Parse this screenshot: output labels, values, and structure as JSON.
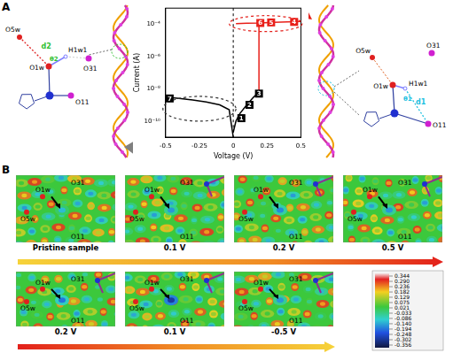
{
  "panel_labels": [
    "A",
    "B"
  ],
  "schematic_left": {
    "atoms": [
      "O5w",
      "O1w",
      "H1w1",
      "O31",
      "O11"
    ],
    "distance": "d2",
    "angle": "θ2"
  },
  "schematic_right": {
    "atoms": [
      "O5w",
      "O31",
      "O1w",
      "H1w1",
      "O11"
    ],
    "distance": "d1",
    "angle": "θ1"
  },
  "chart_data": {
    "type": "line",
    "x_label": "Voltage (V)",
    "y_label": "Current (A)",
    "log": "y",
    "grid": false,
    "xlim": [
      -0.5,
      0.5
    ],
    "xticks": [
      -0.5,
      -0.25,
      0,
      0.25,
      0.5
    ],
    "ylim": [
      1e-11,
      0.001
    ],
    "yticks": [
      {
        "value": 1e-10,
        "label": "10⁻¹⁰"
      },
      {
        "value": 1e-08,
        "label": "10⁻⁸"
      },
      {
        "value": 1e-06,
        "label": "10⁻⁶"
      },
      {
        "value": 0.0001,
        "label": "10⁻⁴"
      }
    ],
    "series": [
      {
        "color": "#000000",
        "x": [
          0,
          0.02,
          0.05,
          0.1,
          0.15,
          0.19
        ],
        "values": [
          2e-11,
          1e-10,
          3e-10,
          1e-09,
          3e-09,
          6e-09
        ]
      },
      {
        "color": "#e8201a",
        "x": [
          0.19,
          0.19,
          0.3,
          0.4,
          0.5,
          0.4,
          0.3,
          0.2,
          0.1,
          0.02
        ],
        "values": [
          6e-09,
          0.00012,
          0.00013,
          0.00014,
          0.00015,
          0.00014,
          0.00013,
          0.00012,
          0.000115,
          0.00011
        ]
      },
      {
        "color": "#000000",
        "x": [
          0,
          -0.03,
          -0.1,
          -0.2,
          -0.3,
          -0.4,
          -0.5
        ],
        "values": [
          1e-11,
          5e-10,
          1e-09,
          1.5e-09,
          2e-09,
          2.5e-09,
          3e-09
        ]
      }
    ],
    "point_labels": [
      {
        "label": "1",
        "x": 0.06,
        "y": 1.5e-10,
        "color": "#000000"
      },
      {
        "label": "2",
        "x": 0.12,
        "y": 1e-09,
        "color": "#000000"
      },
      {
        "label": "3",
        "x": 0.19,
        "y": 5e-09,
        "color": "#000000"
      },
      {
        "label": "4",
        "x": 0.45,
        "y": 0.00014,
        "color": "#e8201a"
      },
      {
        "label": "5",
        "x": 0.28,
        "y": 0.00013,
        "color": "#e8201a"
      },
      {
        "label": "6",
        "x": 0.2,
        "y": 0.00012,
        "color": "#e8201a"
      },
      {
        "label": "7",
        "x": -0.47,
        "y": 2.5e-09,
        "color": "#000000"
      }
    ]
  },
  "maps": {
    "captions": [
      "Pristine sample",
      "0.1 V",
      "0.2 V",
      "0.5 V",
      "0.2 V",
      "0.1 V",
      "-0.5 V"
    ],
    "atoms": [
      "O1w",
      "O31",
      "O5w",
      "O11"
    ],
    "colorbar": {
      "ticks": [
        0.344,
        {
          "value": 0.29,
          "label": "0.290"
        },
        0.236,
        0.182,
        0.129,
        0.075,
        0.021,
        -0.033,
        -0.086,
        {
          "value": -0.14,
          "label": "-0.140"
        },
        -0.194,
        -0.248,
        -0.302,
        -0.356
      ]
    }
  }
}
